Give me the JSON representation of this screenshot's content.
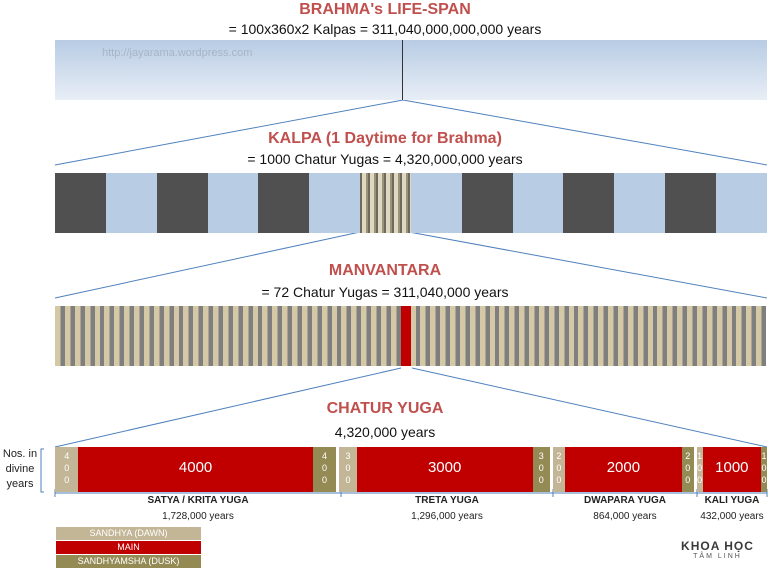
{
  "brahma": {
    "title": "BRAHMA's LIFE-SPAN",
    "subtitle": "= 100x360x2 Kalpas = 311,040,000,000,000 years",
    "watermark": "http://jayarama.wordpress.com"
  },
  "kalpa": {
    "title": "KALPA (1 Daytime for Brahma)",
    "subtitle": "= 1000 Chatur Yugas = 4,320,000,000 years"
  },
  "manvantara": {
    "title": "MANVANTARA",
    "subtitle": "= 72 Chatur Yugas = 311,040,000 years"
  },
  "chatur": {
    "title": "CHATUR YUGA",
    "subtitle": "4,320,000 years",
    "side_label": "Nos. in divine years",
    "segments": [
      {
        "kind": "dawn",
        "value": "400"
      },
      {
        "kind": "main",
        "value": "4000"
      },
      {
        "kind": "dusk",
        "value": "400"
      },
      {
        "kind": "dawn",
        "value": "300"
      },
      {
        "kind": "main",
        "value": "3000"
      },
      {
        "kind": "dusk",
        "value": "300"
      },
      {
        "kind": "dawn",
        "value": "200"
      },
      {
        "kind": "main",
        "value": "2000"
      },
      {
        "kind": "dusk",
        "value": "200"
      },
      {
        "kind": "dawn",
        "value": "100"
      },
      {
        "kind": "main",
        "value": "1000"
      },
      {
        "kind": "dusk",
        "value": "100"
      }
    ],
    "yugas": [
      {
        "name": "SATYA / KRITA YUGA",
        "years": "1,728,000  years"
      },
      {
        "name": "TRETA YUGA",
        "years": "1,296,000 years"
      },
      {
        "name": "DWAPARA YUGA",
        "years": "864,000 years"
      },
      {
        "name": "KALI YUGA",
        "years": "432,000  years"
      }
    ]
  },
  "legend": [
    {
      "label": "SANDHYA (DAWN)",
      "color": "#c3b696"
    },
    {
      "label": "MAIN",
      "color": "#c00000"
    },
    {
      "label": "SANDHYAMSHA (DUSK)",
      "color": "#948a54"
    }
  ],
  "logo": {
    "line1": "KHOA HỌC",
    "line2": "TÂM LINH"
  },
  "colors": {
    "heading": "#c0504d",
    "kalpa_dark": "#505050",
    "kalpa_light": "#b8cce4",
    "stripe_light": "#d4c8a6",
    "stripe_dark": "#7f7f7f",
    "main_red": "#c00000",
    "connector": "#4f81bd"
  }
}
